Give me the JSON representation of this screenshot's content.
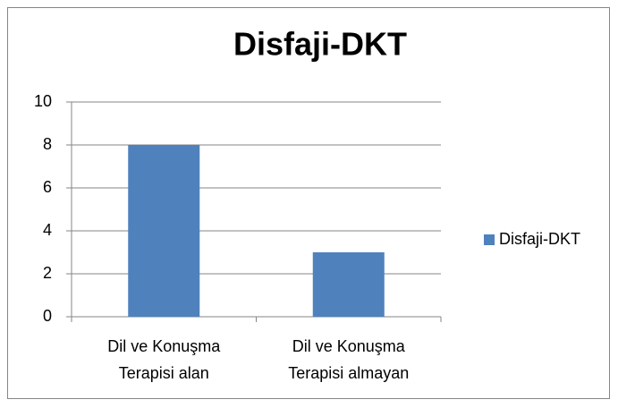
{
  "chart_data": {
    "type": "bar",
    "title": "Disfaji-DKT",
    "categories": [
      "Dil ve Konuşma Terapisi alan",
      "Dil ve Konuşma Terapisi almayan"
    ],
    "series": [
      {
        "name": "Disfaji-DKT",
        "color": "#4f81bd",
        "values": [
          8,
          3
        ]
      }
    ],
    "ylim": [
      0,
      10
    ],
    "yticks": [
      0,
      2,
      4,
      6,
      8,
      10
    ],
    "grid": true,
    "legend": "right"
  }
}
